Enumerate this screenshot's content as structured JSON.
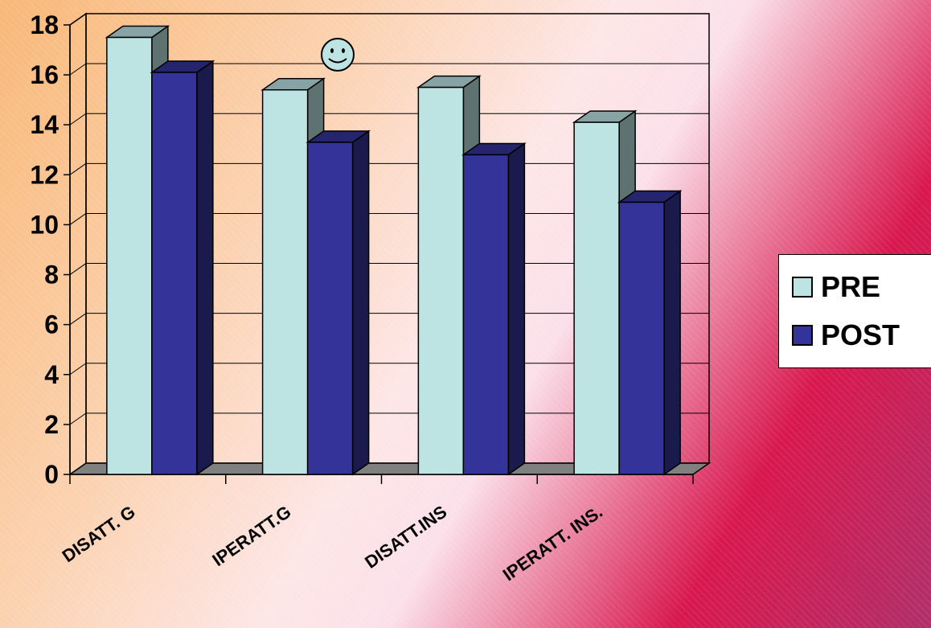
{
  "chart_data": {
    "type": "bar",
    "categories": [
      "DISATT. G",
      "IPERATT.G",
      "DISATT.INS",
      "IPERATT. INS."
    ],
    "series": [
      {
        "name": "PRE",
        "values": [
          17.5,
          15.4,
          15.5,
          14.1
        ],
        "color": "#bde3e3"
      },
      {
        "name": "POST",
        "values": [
          16.1,
          13.3,
          12.8,
          10.9
        ],
        "color": "#333399"
      }
    ],
    "ylim": [
      0,
      18
    ],
    "yticks": [
      "0",
      "2",
      "4",
      "6",
      "8",
      "10",
      "12",
      "14",
      "16",
      "18"
    ],
    "grid": true,
    "legend_position": "right",
    "title": "",
    "xlabel": "",
    "ylabel": ""
  },
  "legend": {
    "items": [
      {
        "label": "PRE",
        "color": "#bde3e3"
      },
      {
        "label": "POST",
        "color": "#333399"
      }
    ]
  },
  "decoration": {
    "icon": "smiley-face-icon"
  }
}
